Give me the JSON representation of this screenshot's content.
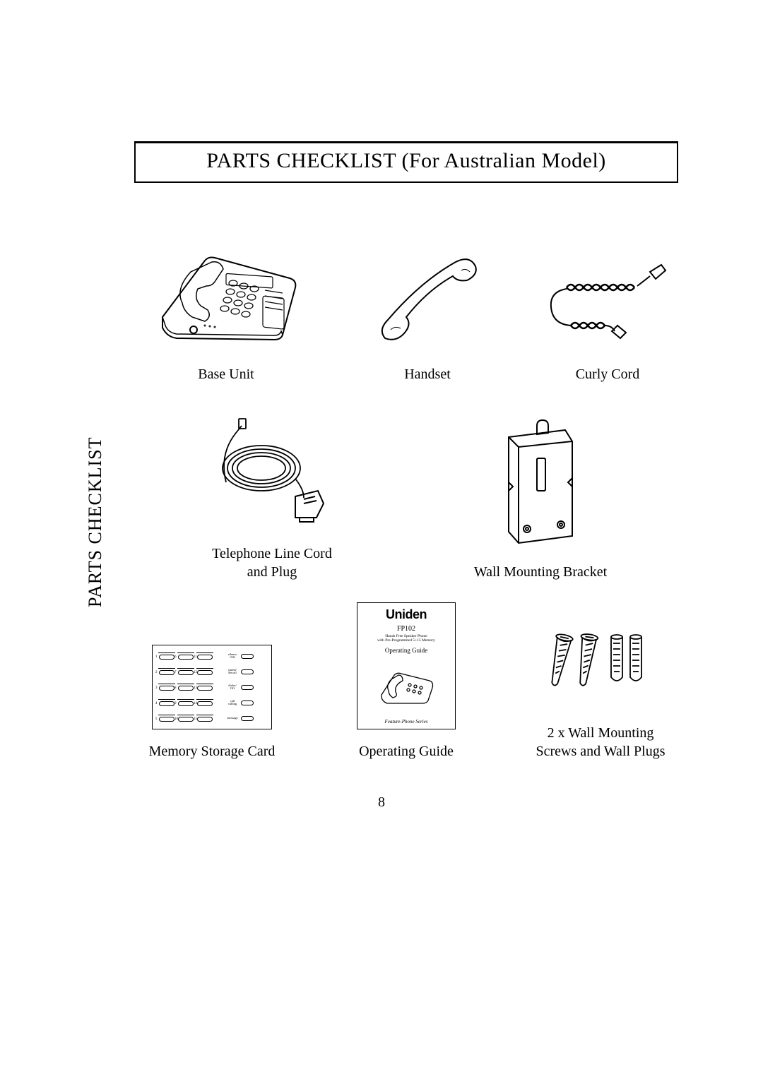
{
  "title": "PARTS CHECKLIST (For Australian Model)",
  "side_tab": "PARTS CHECKLIST",
  "page_number": "8",
  "parts": {
    "base_unit": "Base Unit",
    "handset": "Handset",
    "curly_cord": "Curly Cord",
    "line_cord": "Telephone Line Cord\nand Plug",
    "wall_bracket": "Wall Mounting Bracket",
    "memory_card": "Memory Storage Card",
    "operating_guide": "Operating Guide",
    "screws": "2 x Wall Mounting\nScrews and Wall Plugs"
  },
  "guide_booklet": {
    "brand": "Uniden",
    "model": "FP102",
    "sub1": "Hands Free Speaker Phone",
    "sub2": "with Pre-Programmed 5+15 Memory",
    "og": "Operating Guide",
    "foot": "Feature-Phone Series"
  },
  "memory_card": {
    "rows": [
      {
        "nums": [
          "1",
          "6",
          "11"
        ],
        "label": "silence\n/Off"
      },
      {
        "nums": [
          "2",
          "7",
          "12"
        ],
        "label": "timed/\nRecall"
      },
      {
        "nums": [
          "3",
          "8",
          "13"
        ],
        "label": "dialer/\nOff"
      },
      {
        "nums": [
          "4",
          "9",
          "14"
        ],
        "label": "call\ncalling"
      },
      {
        "nums": [
          "5",
          "10",
          "15"
        ],
        "label": "message"
      }
    ]
  },
  "style": {
    "stroke": "#000000",
    "bg": "#ffffff"
  }
}
